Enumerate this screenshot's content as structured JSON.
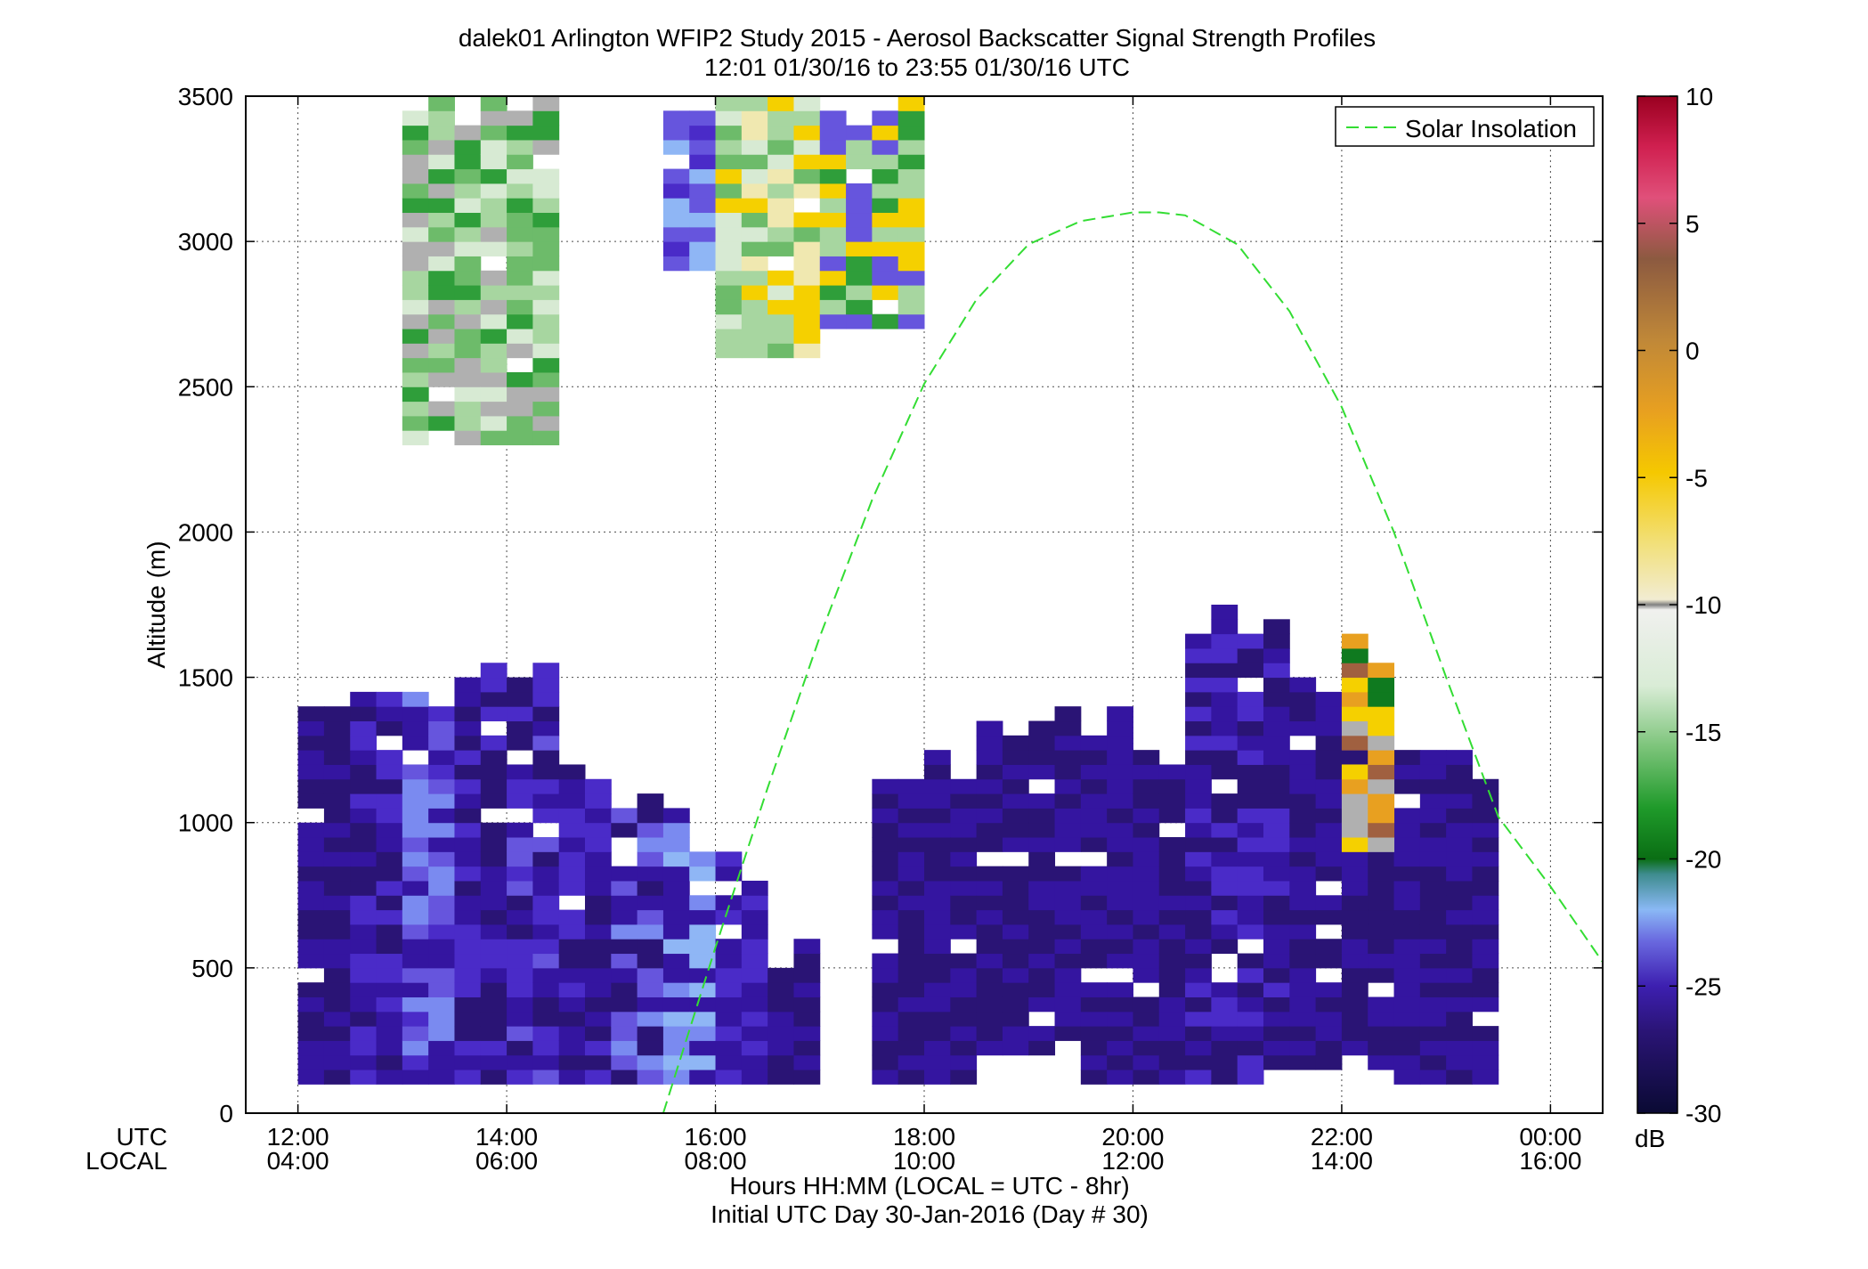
{
  "chart_data": {
    "type": "heatmap",
    "title": "dalek01 Arlington WFIP2 Study 2015 - Aerosol Backscatter Signal Strength Profiles",
    "subtitle": "12:01 01/30/16 to 23:55 01/30/16  UTC",
    "xlabel": "Hours HH:MM  (LOCAL = UTC - 8hr)",
    "xlabel2": "Initial UTC Day 30-Jan-2016 (Day # 30)",
    "ylabel": "Altitude (m)",
    "x_row_labels": [
      "UTC",
      "LOCAL"
    ],
    "xlim_hours_utc": [
      11.5,
      24.5
    ],
    "ylim": [
      0,
      3500
    ],
    "x_ticks_utc": [
      "12:00",
      "14:00",
      "16:00",
      "18:00",
      "20:00",
      "22:00",
      "00:00"
    ],
    "x_ticks_local": [
      "04:00",
      "06:00",
      "08:00",
      "10:00",
      "12:00",
      "14:00",
      "16:00"
    ],
    "y_ticks": [
      0,
      500,
      1000,
      1500,
      2000,
      2500,
      3000,
      3500
    ],
    "grid": true,
    "legend": {
      "entries": [
        "Solar Insolation"
      ],
      "placement": "top-right"
    },
    "colorbar": {
      "label": "dB",
      "range": [
        -30,
        10
      ],
      "ticks": [
        -30,
        -25,
        -20,
        -15,
        -10,
        -5,
        0,
        5,
        10
      ]
    },
    "series": [
      {
        "name": "Solar Insolation",
        "style": "dashed",
        "color": "#33dd33",
        "x": [
          15.5,
          16.0,
          16.5,
          17.0,
          17.5,
          18.0,
          18.5,
          19.0,
          19.5,
          20.0,
          20.25,
          20.5,
          21.0,
          21.5,
          22.0,
          22.5,
          23.0,
          23.5,
          24.0,
          24.5
        ],
        "y": [
          0,
          570,
          1120,
          1640,
          2110,
          2510,
          2800,
          2990,
          3070,
          3100,
          3100,
          3090,
          2990,
          2760,
          2430,
          2000,
          1500,
          1020,
          780,
          520
        ]
      }
    ],
    "profiles_time_step_hours": 0.25,
    "profiles_alt_step_m": 50,
    "palette": [
      "#1a0b4d",
      "#2a1475",
      "#3415a0",
      "#4a2bc8",
      "#6655dd",
      "#7a8af0",
      "#8fb6f5",
      "#3e8c8e",
      "#0f7a1f",
      "#2f9e3a",
      "#6dbb6a",
      "#a7d6a0",
      "#d7ead3",
      "#ededed",
      "#b0b0b0",
      "#f0e8b0",
      "#f5d000",
      "#e8a020",
      "#a06040"
    ],
    "regions": [
      {
        "t": [
          12.0,
          12.5
        ],
        "alt": [
          100,
          1400
        ],
        "c": [
          1,
          2
        ]
      },
      {
        "t": [
          12.5,
          13.0
        ],
        "alt": [
          100,
          1450
        ],
        "c": [
          1,
          2,
          3
        ]
      },
      {
        "t": [
          13.0,
          13.5
        ],
        "alt": [
          100,
          1500
        ],
        "c": [
          2,
          3,
          4,
          5
        ]
      },
      {
        "t": [
          13.5,
          14.0
        ],
        "alt": [
          100,
          1600
        ],
        "c": [
          1,
          2,
          3
        ]
      },
      {
        "t": [
          14.0,
          14.5
        ],
        "alt": [
          100,
          1500
        ],
        "c": [
          1,
          2,
          3,
          4
        ]
      },
      {
        "t": [
          14.5,
          15.0
        ],
        "alt": [
          100,
          1300
        ],
        "c": [
          1,
          2,
          3
        ]
      },
      {
        "t": [
          15.0,
          15.5
        ],
        "alt": [
          100,
          1100
        ],
        "c": [
          1,
          2,
          4,
          5
        ]
      },
      {
        "t": [
          15.5,
          16.0
        ],
        "alt": [
          100,
          1000
        ],
        "c": [
          2,
          5,
          6
        ]
      },
      {
        "t": [
          16.0,
          16.5
        ],
        "alt": [
          100,
          850
        ],
        "c": [
          2,
          3
        ]
      },
      {
        "t": [
          16.5,
          17.0
        ],
        "alt": [
          100,
          550
        ],
        "c": [
          1,
          2
        ]
      },
      {
        "t": [
          17.5,
          18.5
        ],
        "alt": [
          100,
          1200
        ],
        "c": [
          1,
          2
        ]
      },
      {
        "t": [
          18.5,
          19.5
        ],
        "alt": [
          200,
          1350
        ],
        "c": [
          1,
          2
        ]
      },
      {
        "t": [
          19.5,
          20.5
        ],
        "alt": [
          100,
          1300
        ],
        "c": [
          1,
          2
        ]
      },
      {
        "t": [
          20.5,
          21.5
        ],
        "alt": [
          100,
          1700
        ],
        "c": [
          1,
          2,
          3
        ]
      },
      {
        "t": [
          21.5,
          22.5
        ],
        "alt": [
          150,
          1400
        ],
        "c": [
          1,
          2
        ]
      },
      {
        "t": [
          22.5,
          23.5
        ],
        "alt": [
          100,
          1200
        ],
        "c": [
          1,
          2
        ]
      },
      {
        "t": [
          13.0,
          14.5
        ],
        "alt": [
          2300,
          3500
        ],
        "c": [
          9,
          10,
          11,
          12,
          14
        ]
      },
      {
        "t": [
          15.5,
          16.0
        ],
        "alt": [
          2900,
          3500
        ],
        "c": [
          3,
          4,
          6
        ]
      },
      {
        "t": [
          16.0,
          17.0
        ],
        "alt": [
          2600,
          3500
        ],
        "c": [
          10,
          11,
          12,
          15,
          16
        ]
      },
      {
        "t": [
          17.0,
          18.0
        ],
        "alt": [
          2700,
          3500
        ],
        "c": [
          4,
          9,
          11,
          16
        ]
      },
      {
        "t": [
          22.0,
          22.5
        ],
        "alt": [
          900,
          1550
        ],
        "c": [
          8,
          14,
          16,
          17,
          18
        ]
      }
    ]
  }
}
